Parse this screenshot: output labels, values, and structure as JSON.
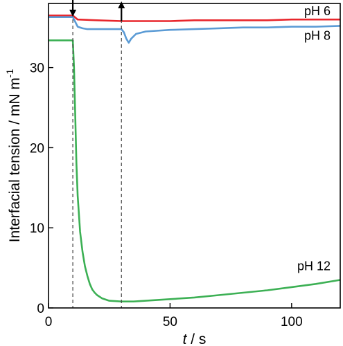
{
  "chart_data": {
    "type": "line",
    "xlabel_italic": "t",
    "xlabel_rest": " / s",
    "ylabel": "Interfacial tension / mN m",
    "ylabel_sup": "-1",
    "xlim": [
      0,
      120
    ],
    "ylim": [
      0,
      38
    ],
    "xticks": [
      0,
      50,
      100
    ],
    "yticks": [
      0,
      10,
      20,
      30
    ],
    "grid": false,
    "events": [
      {
        "x": 10,
        "direction": "down"
      },
      {
        "x": 30,
        "direction": "up"
      }
    ],
    "series": [
      {
        "name": "pH 6",
        "color": "#e8262c",
        "x": [
          0,
          10,
          12,
          20,
          30,
          40,
          50,
          60,
          70,
          80,
          90,
          100,
          110,
          120
        ],
        "y": [
          36.5,
          36.5,
          36.0,
          35.9,
          35.8,
          35.8,
          35.8,
          35.9,
          35.9,
          35.9,
          35.9,
          36.0,
          36.0,
          36.0
        ]
      },
      {
        "name": "pH 8",
        "color": "#5b9bd5",
        "x": [
          0,
          10,
          11,
          12,
          14,
          16,
          20,
          25,
          30,
          31,
          32,
          33,
          34,
          36,
          40,
          50,
          60,
          70,
          80,
          90,
          100,
          110,
          120
        ],
        "y": [
          36.3,
          36.3,
          35.7,
          35.1,
          34.9,
          34.8,
          34.8,
          34.8,
          34.8,
          34.4,
          33.6,
          33.1,
          33.6,
          34.2,
          34.5,
          34.7,
          34.8,
          34.9,
          35.0,
          35.0,
          35.1,
          35.1,
          35.2
        ]
      },
      {
        "name": "pH 12",
        "color": "#3cb054",
        "x": [
          0,
          10,
          10.5,
          11,
          11.5,
          12,
          13,
          14,
          15,
          16,
          17,
          18,
          19,
          20,
          22,
          25,
          30,
          35,
          40,
          45,
          50,
          60,
          70,
          80,
          90,
          100,
          110,
          120
        ],
        "y": [
          33.4,
          33.4,
          30.0,
          24.0,
          18.0,
          14.0,
          9.5,
          7.0,
          5.2,
          4.0,
          3.0,
          2.3,
          1.9,
          1.6,
          1.2,
          0.9,
          0.8,
          0.8,
          0.9,
          1.0,
          1.1,
          1.3,
          1.6,
          1.9,
          2.2,
          2.6,
          3.0,
          3.5
        ]
      }
    ]
  }
}
